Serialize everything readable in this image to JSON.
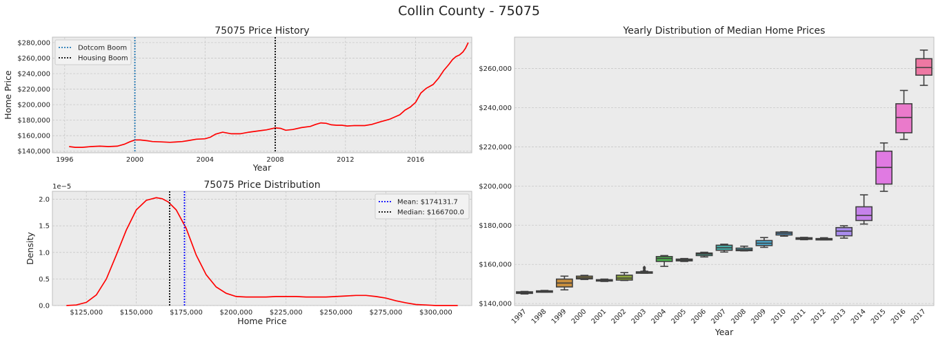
{
  "figure": {
    "title": "Collin County - 75075"
  },
  "chart_data": [
    {
      "type": "line",
      "title": "75075 Price History",
      "xlabel": "Year",
      "ylabel": "Home Price",
      "xlim": [
        1995.3,
        2019.2
      ],
      "ylim": [
        138000,
        287000
      ],
      "xticks": [
        1996,
        2000,
        2004,
        2008,
        2012,
        2016
      ],
      "xtick_labels": [
        "1996",
        "2000",
        "2004",
        "2008",
        "2012",
        "2016"
      ],
      "yticks": [
        140000,
        160000,
        180000,
        200000,
        220000,
        240000,
        260000,
        280000
      ],
      "ytick_labels": [
        "$140,000",
        "$160,000",
        "$180,000",
        "$200,000",
        "$220,000",
        "$240,000",
        "$260,000",
        "$280,000"
      ],
      "grid": true,
      "legend_position": "top-left",
      "series": [
        {
          "color": "#ff0000",
          "x": [
            1996.25,
            1996.6,
            1997.0,
            1997.5,
            1998.0,
            1998.5,
            1999.0,
            1999.4,
            1999.7,
            2000.0,
            2000.3,
            2000.7,
            2001.0,
            2001.5,
            2002.0,
            2002.3,
            2002.7,
            2003.0,
            2003.5,
            2004.0,
            2004.3,
            2004.6,
            2005.0,
            2005.5,
            2006.0,
            2006.5,
            2007.0,
            2007.5,
            2008.0,
            2008.3,
            2008.6,
            2009.0,
            2009.5,
            2010.0,
            2010.3,
            2010.6,
            2010.9,
            2011.2,
            2011.5,
            2011.8,
            2012.1,
            2012.5,
            2012.8,
            2013.1,
            2013.5,
            2014.0,
            2014.5,
            2014.8,
            2015.1,
            2015.4,
            2015.7,
            2016.0,
            2016.3,
            2016.6,
            2017.0,
            2017.3,
            2017.6,
            2017.9,
            2018.1,
            2018.3
          ],
          "y": [
            146000,
            145000,
            145000,
            146000,
            146500,
            146000,
            146500,
            149000,
            152000,
            154500,
            154500,
            153500,
            152500,
            152000,
            151500,
            151800,
            152500,
            153500,
            155500,
            156000,
            158000,
            162000,
            164500,
            162500,
            162500,
            164500,
            166000,
            167500,
            170000,
            169500,
            167000,
            168000,
            170500,
            172000,
            174500,
            176500,
            176000,
            174000,
            173500,
            173500,
            172500,
            173000,
            173000,
            173000,
            174500,
            178000,
            181000,
            184000,
            187000,
            193000,
            197000,
            203000,
            215000,
            221000,
            226000,
            234000,
            244000,
            252000,
            258000,
            262000
          ]
        }
      ],
      "extra_points": {
        "x": [
          2018.5,
          2018.7,
          2018.85,
          2019.0
        ],
        "y": [
          264000,
          268000,
          273000,
          280000
        ]
      },
      "vlines": [
        {
          "x": 2000.0,
          "color": "#1f77b4",
          "style": "dotted",
          "label": "Dotcom Boom"
        },
        {
          "x": 2008.0,
          "color": "#000000",
          "style": "dotted",
          "label": "Housing Boom"
        }
      ]
    },
    {
      "type": "area",
      "title": "75075 Price Distribution",
      "xlabel": "Home Price",
      "ylabel": "Density",
      "y_scale_label": "1e−5",
      "xlim": [
        108000,
        318000
      ],
      "ylim": [
        0,
        2.15
      ],
      "xticks": [
        125000,
        150000,
        175000,
        200000,
        225000,
        250000,
        275000,
        300000
      ],
      "xtick_labels": [
        "$125,000",
        "$150,000",
        "$175,000",
        "$200,000",
        "$225,000",
        "$250,000",
        "$275,000",
        "$300,000"
      ],
      "yticks": [
        0,
        0.5,
        1.0,
        1.5,
        2.0
      ],
      "ytick_labels": [
        "0.0",
        "0.5",
        "1.0",
        "1.5",
        "2.0"
      ],
      "grid": true,
      "legend_position": "top-right",
      "series": [
        {
          "color": "#ff0000",
          "x": [
            115000,
            120000,
            125000,
            130000,
            135000,
            140000,
            145000,
            150000,
            155000,
            160000,
            163000,
            166000,
            170000,
            175000,
            180000,
            185000,
            190000,
            195000,
            200000,
            205000,
            210000,
            215000,
            220000,
            225000,
            230000,
            235000,
            240000,
            245000,
            250000,
            255000,
            260000,
            265000,
            270000,
            275000,
            280000,
            285000,
            290000,
            295000,
            300000,
            305000,
            311000
          ],
          "y": [
            0.0,
            0.01,
            0.06,
            0.2,
            0.5,
            0.95,
            1.42,
            1.8,
            1.98,
            2.03,
            2.01,
            1.95,
            1.8,
            1.45,
            0.95,
            0.58,
            0.35,
            0.23,
            0.17,
            0.16,
            0.16,
            0.16,
            0.17,
            0.17,
            0.17,
            0.16,
            0.16,
            0.16,
            0.17,
            0.18,
            0.19,
            0.19,
            0.17,
            0.14,
            0.09,
            0.05,
            0.02,
            0.01,
            0.0,
            0.0,
            0.0
          ]
        }
      ],
      "vlines": [
        {
          "x": 174131.7,
          "color": "#0000ff",
          "style": "dotted",
          "label": "Mean: $174131.7"
        },
        {
          "x": 166700.0,
          "color": "#000000",
          "style": "dotted",
          "label": "Median: $166700.0"
        }
      ]
    },
    {
      "type": "box",
      "title": "Yearly Distribution of Median Home Prices",
      "xlabel": "Year",
      "ylabel": "",
      "ylim": [
        139000,
        276000
      ],
      "yticks": [
        140000,
        160000,
        180000,
        200000,
        220000,
        240000,
        260000
      ],
      "ytick_labels": [
        "$140,000",
        "$160,000",
        "$180,000",
        "$200,000",
        "$220,000",
        "$240,000",
        "$260,000"
      ],
      "grid": true,
      "categories": [
        "1997",
        "1998",
        "1999",
        "2000",
        "2001",
        "2002",
        "2003",
        "2004",
        "2005",
        "2006",
        "2007",
        "2008",
        "2009",
        "2010",
        "2011",
        "2012",
        "2013",
        "2014",
        "2015",
        "2016",
        "2017"
      ],
      "boxes": [
        {
          "min": 144900,
          "q1": 145200,
          "median": 145600,
          "q3": 146000,
          "max": 146200,
          "color": "#ea7a6b"
        },
        {
          "min": 145800,
          "q1": 146000,
          "median": 146200,
          "q3": 146500,
          "max": 146700,
          "color": "#de8450"
        },
        {
          "min": 147000,
          "q1": 148500,
          "median": 150500,
          "q3": 152500,
          "max": 154000,
          "color": "#c98f3e"
        },
        {
          "min": 152300,
          "q1": 152600,
          "median": 153200,
          "q3": 154000,
          "max": 154400,
          "color": "#b59a3d"
        },
        {
          "min": 151300,
          "q1": 151500,
          "median": 151900,
          "q3": 152200,
          "max": 152500,
          "color": "#a3a03c"
        },
        {
          "min": 151800,
          "q1": 152000,
          "median": 153000,
          "q3": 154500,
          "max": 155800,
          "color": "#8fa83d"
        },
        {
          "min": 155500,
          "q1": 155800,
          "median": 156000,
          "q3": 156200,
          "max": 156500,
          "color": "#6eb244",
          "outliers": [
            157000,
            157800,
            158500
          ]
        },
        {
          "min": 159000,
          "q1": 161500,
          "median": 163000,
          "q3": 164000,
          "max": 164500,
          "color": "#4cb54e"
        },
        {
          "min": 161500,
          "q1": 161800,
          "median": 162200,
          "q3": 162700,
          "max": 163000,
          "color": "#44b479"
        },
        {
          "min": 163800,
          "q1": 164500,
          "median": 165300,
          "q3": 165800,
          "max": 166200,
          "color": "#45b29a"
        },
        {
          "min": 166300,
          "q1": 167200,
          "median": 168500,
          "q3": 169800,
          "max": 170300,
          "color": "#47b0ac"
        },
        {
          "min": 166900,
          "q1": 167000,
          "median": 167500,
          "q3": 168300,
          "max": 169300,
          "color": "#48adbd"
        },
        {
          "min": 168700,
          "q1": 169600,
          "median": 170800,
          "q3": 172200,
          "max": 173700,
          "color": "#4aa9cf"
        },
        {
          "min": 174400,
          "q1": 175000,
          "median": 175800,
          "q3": 176500,
          "max": 176700,
          "color": "#53a3de"
        },
        {
          "min": 172600,
          "q1": 172800,
          "median": 173200,
          "q3": 173600,
          "max": 173800,
          "color": "#6b9ce9"
        },
        {
          "min": 172500,
          "q1": 172700,
          "median": 172900,
          "q3": 173200,
          "max": 173600,
          "color": "#8d94ec"
        },
        {
          "min": 173400,
          "q1": 174600,
          "median": 177000,
          "q3": 178800,
          "max": 179700,
          "color": "#a98cee"
        },
        {
          "min": 180600,
          "q1": 182400,
          "median": 185000,
          "q3": 189400,
          "max": 195500,
          "color": "#c582ea"
        },
        {
          "min": 197300,
          "q1": 201000,
          "median": 209500,
          "q3": 217800,
          "max": 222000,
          "color": "#e07ae2"
        },
        {
          "min": 223800,
          "q1": 227200,
          "median": 235000,
          "q3": 242000,
          "max": 248800,
          "color": "#ea7acb"
        },
        {
          "min": 251400,
          "q1": 256600,
          "median": 260500,
          "q3": 265000,
          "max": 269400,
          "color": "#ee78a3"
        }
      ]
    }
  ]
}
